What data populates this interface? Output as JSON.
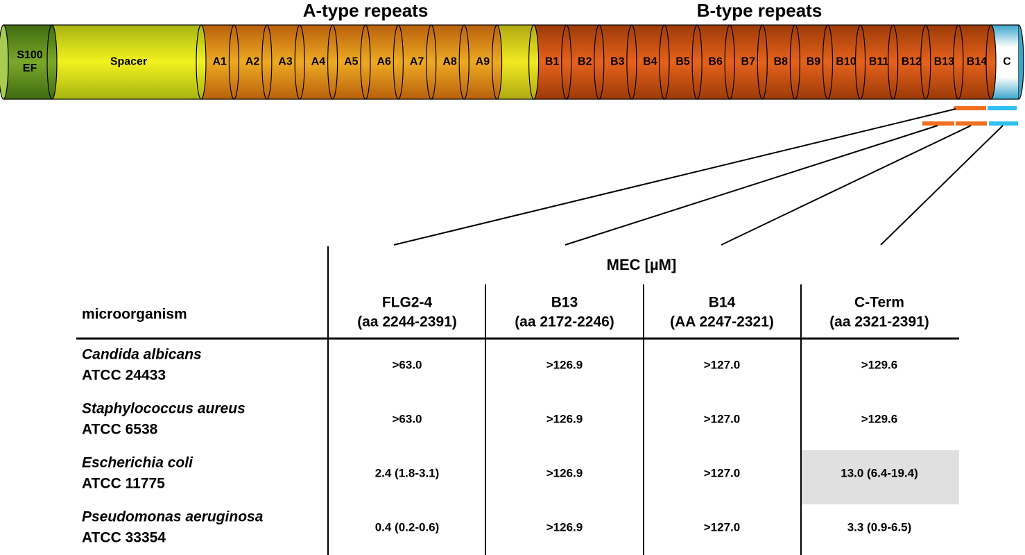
{
  "diagram": {
    "headers": [
      "A-type repeats",
      "B-type repeats"
    ],
    "segments": [
      {
        "lines": [
          "S100",
          "EF"
        ],
        "kind": "s100"
      },
      {
        "lines": [
          "Spacer"
        ],
        "kind": "spacer"
      },
      {
        "lines": [
          "A1"
        ],
        "kind": "a"
      },
      {
        "lines": [
          "A2"
        ],
        "kind": "a"
      },
      {
        "lines": [
          "A3"
        ],
        "kind": "a"
      },
      {
        "lines": [
          "A4"
        ],
        "kind": "a"
      },
      {
        "lines": [
          "A5"
        ],
        "kind": "a"
      },
      {
        "lines": [
          "A6"
        ],
        "kind": "a"
      },
      {
        "lines": [
          "A7"
        ],
        "kind": "a"
      },
      {
        "lines": [
          "A8"
        ],
        "kind": "a"
      },
      {
        "lines": [
          "A9"
        ],
        "kind": "a"
      },
      {
        "lines": [],
        "kind": "gap"
      },
      {
        "lines": [
          "B1"
        ],
        "kind": "b"
      },
      {
        "lines": [
          "B2"
        ],
        "kind": "b"
      },
      {
        "lines": [
          "B3"
        ],
        "kind": "b"
      },
      {
        "lines": [
          "B4"
        ],
        "kind": "b"
      },
      {
        "lines": [
          "B5"
        ],
        "kind": "b"
      },
      {
        "lines": [
          "B6"
        ],
        "kind": "b"
      },
      {
        "lines": [
          "B7"
        ],
        "kind": "b"
      },
      {
        "lines": [
          "B8"
        ],
        "kind": "b"
      },
      {
        "lines": [
          "B9"
        ],
        "kind": "b"
      },
      {
        "lines": [
          "B10"
        ],
        "kind": "b"
      },
      {
        "lines": [
          "B11"
        ],
        "kind": "b"
      },
      {
        "lines": [
          "B12"
        ],
        "kind": "b"
      },
      {
        "lines": [
          "B13"
        ],
        "kind": "b"
      },
      {
        "lines": [
          "B14"
        ],
        "kind": "b"
      },
      {
        "lines": [
          "C"
        ],
        "kind": "c"
      }
    ]
  },
  "table": {
    "group_header": "MEC [µM]",
    "row_header": "microorganism",
    "columns": [
      {
        "name": "FLG2-4",
        "range": "(aa 2244-2391)"
      },
      {
        "name": "B13",
        "range": "(aa 2172-2246)"
      },
      {
        "name": "B14",
        "range": "(AA 2247-2321)"
      },
      {
        "name": "C-Term",
        "range": "(aa 2321-2391)"
      }
    ],
    "rows": [
      {
        "organism": "Candida albicans",
        "strain": "ATCC 24433",
        "values": [
          ">63.0",
          ">126.9",
          ">127.0",
          ">129.6"
        ]
      },
      {
        "organism": "Staphylococcus aureus",
        "strain": "ATCC 6538",
        "values": [
          ">63.0",
          ">126.9",
          ">127.0",
          ">129.6"
        ]
      },
      {
        "organism": "Escherichia coli",
        "strain": "ATCC 11775",
        "values": [
          "2.4 (1.8-3.1)",
          ">126.9",
          ">127.0",
          "13.0 (6.4-19.4)"
        ],
        "highlight": [
          3
        ]
      },
      {
        "organism": "Pseudomonas aeruginosa",
        "strain": "ATCC 33354",
        "values": [
          "0.4 (0.2-0.6)",
          ">126.9",
          ">127.0",
          "3.3 (0.9-6.5)"
        ]
      }
    ]
  }
}
